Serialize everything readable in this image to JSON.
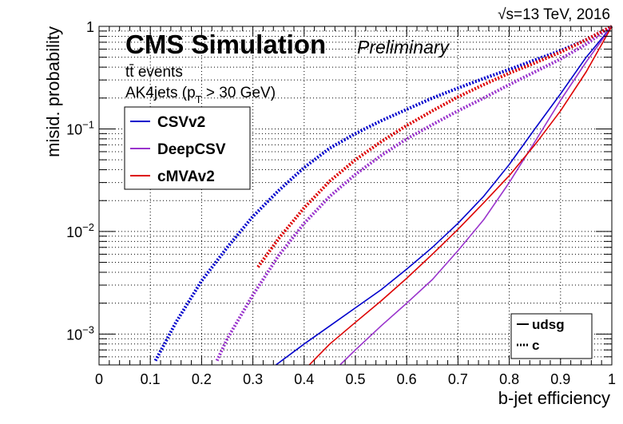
{
  "header": {
    "energy_label": "√s=13 TeV, 2016"
  },
  "chart_data": {
    "type": "line",
    "title": "CMS Simulation",
    "subtitle": "Preliminary",
    "annotations": [
      "tt̄ events",
      "AK4jets (p",
      "T",
      " > 30 GeV)"
    ],
    "xlabel": "b-jet efficiency",
    "ylabel": "misid. probability",
    "xlim": [
      0,
      1
    ],
    "ylim": [
      0.0005,
      1
    ],
    "y_scale": "log",
    "grid": true,
    "x_ticks": [
      "0",
      "0.1",
      "0.2",
      "0.3",
      "0.4",
      "0.5",
      "0.6",
      "0.7",
      "0.8",
      "0.9",
      "1"
    ],
    "y_ticks": [
      {
        "base": "10",
        "exp": "−3",
        "value": 0.001
      },
      {
        "base": "10",
        "exp": "−2",
        "value": 0.01
      },
      {
        "base": "10",
        "exp": "−1",
        "value": 0.1
      },
      {
        "base": "1",
        "exp": "",
        "value": 1
      }
    ],
    "legend": {
      "placement": "top-left",
      "entries": [
        {
          "name": "CSVv2",
          "color": "#0000cc"
        },
        {
          "name": "DeepCSV",
          "color": "#9933cc"
        },
        {
          "name": "cMVAv2",
          "color": "#dd0000"
        }
      ]
    },
    "style_legend": {
      "placement": "bottom-right",
      "entries": [
        {
          "name": "udsg",
          "style": "solid"
        },
        {
          "name": "c",
          "style": "dotted"
        }
      ]
    },
    "series": [
      {
        "tagger": "CSVv2",
        "flavour": "c",
        "color": "#0000cc",
        "style": "dotted",
        "x": [
          0.11,
          0.15,
          0.2,
          0.25,
          0.3,
          0.35,
          0.4,
          0.45,
          0.5,
          0.55,
          0.6,
          0.65,
          0.7,
          0.75,
          0.8,
          0.85,
          0.9,
          0.95,
          1.0
        ],
        "y": [
          0.00055,
          0.0013,
          0.0033,
          0.007,
          0.014,
          0.025,
          0.042,
          0.065,
          0.09,
          0.12,
          0.155,
          0.2,
          0.25,
          0.31,
          0.38,
          0.47,
          0.58,
          0.74,
          1.0
        ]
      },
      {
        "tagger": "DeepCSV",
        "flavour": "c",
        "color": "#9933cc",
        "style": "dotted",
        "x": [
          0.23,
          0.25,
          0.3,
          0.35,
          0.4,
          0.45,
          0.5,
          0.55,
          0.6,
          0.65,
          0.7,
          0.75,
          0.8,
          0.85,
          0.9,
          0.95,
          1.0
        ],
        "y": [
          0.00055,
          0.0009,
          0.0024,
          0.0058,
          0.012,
          0.022,
          0.036,
          0.055,
          0.08,
          0.11,
          0.15,
          0.2,
          0.27,
          0.36,
          0.48,
          0.67,
          1.0
        ]
      },
      {
        "tagger": "cMVAv2",
        "flavour": "c",
        "color": "#dd0000",
        "style": "dotted",
        "x": [
          0.31,
          0.35,
          0.4,
          0.45,
          0.5,
          0.55,
          0.6,
          0.65,
          0.7,
          0.75,
          0.8,
          0.85,
          0.9,
          0.95,
          1.0
        ],
        "y": [
          0.0045,
          0.0085,
          0.017,
          0.031,
          0.05,
          0.075,
          0.108,
          0.15,
          0.205,
          0.27,
          0.35,
          0.44,
          0.56,
          0.74,
          1.0
        ]
      },
      {
        "tagger": "CSVv2",
        "flavour": "udsg",
        "color": "#0000cc",
        "style": "solid",
        "x": [
          0.345,
          0.4,
          0.45,
          0.5,
          0.55,
          0.6,
          0.65,
          0.7,
          0.75,
          0.8,
          0.85,
          0.9,
          0.95,
          1.0
        ],
        "y": [
          0.0005,
          0.0008,
          0.0012,
          0.0018,
          0.0027,
          0.0043,
          0.007,
          0.012,
          0.022,
          0.045,
          0.1,
          0.22,
          0.5,
          1.0
        ]
      },
      {
        "tagger": "DeepCSV",
        "flavour": "udsg",
        "color": "#9933cc",
        "style": "solid",
        "x": [
          0.47,
          0.5,
          0.55,
          0.6,
          0.65,
          0.7,
          0.75,
          0.8,
          0.85,
          0.9,
          0.95,
          1.0
        ],
        "y": [
          0.0005,
          0.0007,
          0.0012,
          0.002,
          0.0034,
          0.0065,
          0.013,
          0.03,
          0.075,
          0.19,
          0.45,
          1.0
        ]
      },
      {
        "tagger": "cMVAv2",
        "flavour": "udsg",
        "color": "#dd0000",
        "style": "solid",
        "x": [
          0.41,
          0.45,
          0.5,
          0.55,
          0.6,
          0.65,
          0.7,
          0.75,
          0.8,
          0.85,
          0.9,
          0.95,
          1.0
        ],
        "y": [
          0.0005,
          0.0008,
          0.0013,
          0.0021,
          0.0035,
          0.006,
          0.0105,
          0.019,
          0.035,
          0.07,
          0.15,
          0.36,
          1.0
        ]
      }
    ]
  }
}
